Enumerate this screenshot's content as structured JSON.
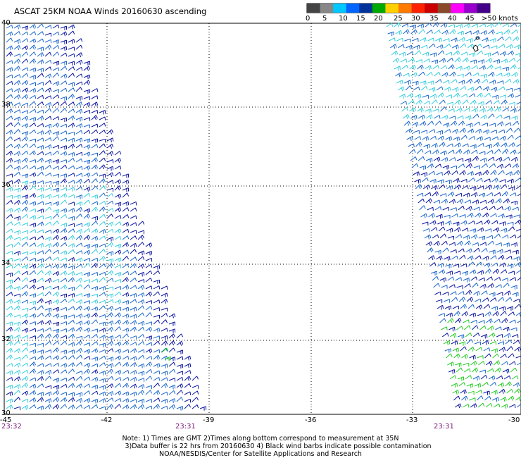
{
  "title": "ASCAT 25KM NOAA Winds 20160630 ascending",
  "legend": {
    "colors": [
      "#444444",
      "#888888",
      "#00c8ff",
      "#0066ff",
      "#003399",
      "#00aa00",
      "#ffd000",
      "#ff7a00",
      "#ff2200",
      "#cc0000",
      "#8a4a2a",
      "#ff00ff",
      "#9900cc",
      "#440088"
    ],
    "labels": [
      "0",
      "5",
      "10",
      "15",
      "20",
      "25",
      "30",
      "35",
      "40",
      "45",
      ">50 knots"
    ]
  },
  "map": {
    "lon_ticks": [
      "-45",
      "-42",
      "-39",
      "-36",
      "-33",
      "-30"
    ],
    "lat_ticks": [
      "40",
      "38",
      "36",
      "34",
      "32",
      "30"
    ],
    "lon_range": [
      -45,
      -30
    ],
    "lat_range": [
      30,
      40
    ],
    "pass_times": [
      "23:32",
      "23:31",
      "23:31"
    ]
  },
  "barb_colors": {
    "light": "#33ccdd",
    "medium": "#1a66cc",
    "dark": "#0a14a0",
    "strong": "#22cc22"
  },
  "notes": [
    "Note: 1) Times are GMT 2)Times along bottom correspond to measurement at 35N",
    "3)Data buffer is 22 hrs from 20160630 4) Black wind barbs indicate possible contamination",
    "NOAA/NESDIS/Center for Satellite Applications and Research"
  ]
}
